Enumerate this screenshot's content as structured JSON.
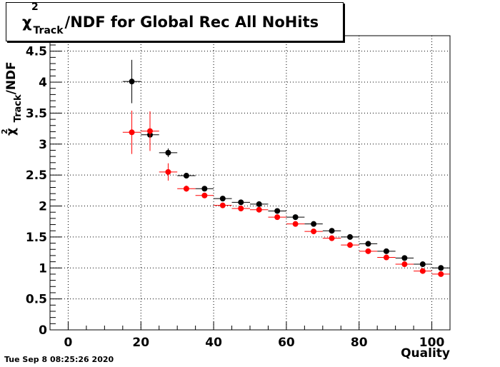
{
  "title": {
    "chi": "χ",
    "sup": "2",
    "sub": "Track",
    "rest": "/NDF for Global Rec All NoHits"
  },
  "date": "Tue Sep  8 08:25:26 2020",
  "chart_data": {
    "type": "scatter",
    "xlabel": "Quality",
    "ylabel": {
      "chi": "χ",
      "sup": "2",
      "sub": "Track",
      "rest": "/NDF"
    },
    "xlim": [
      -5,
      105
    ],
    "ylim": [
      0,
      4.75
    ],
    "xticks": [
      0,
      20,
      40,
      60,
      80,
      100
    ],
    "yticks": [
      0,
      0.5,
      1,
      1.5,
      2,
      2.5,
      3,
      3.5,
      4,
      4.5
    ],
    "grid": true,
    "series": [
      {
        "color": "#000000",
        "x": [
          17.5,
          22.5,
          27.5,
          32.5,
          37.5,
          42.5,
          47.5,
          52.5,
          57.5,
          62.5,
          67.5,
          72.5,
          77.5,
          82.5,
          87.5,
          92.5,
          97.5,
          102.5
        ],
        "y": [
          4.01,
          3.15,
          2.86,
          2.49,
          2.28,
          2.12,
          2.06,
          2.03,
          1.92,
          1.82,
          1.71,
          1.6,
          1.5,
          1.39,
          1.27,
          1.16,
          1.06,
          1.0
        ],
        "yerr": [
          0.35,
          0.05,
          0.07,
          0.04,
          0.03,
          0.03,
          0.02,
          0.02,
          0.02,
          0.02,
          0.02,
          0.02,
          0.02,
          0.02,
          0.02,
          0.02,
          0.02,
          0.02
        ]
      },
      {
        "color": "#ff0000",
        "x": [
          17.5,
          22.5,
          27.5,
          32.5,
          37.5,
          42.5,
          47.5,
          52.5,
          57.5,
          62.5,
          67.5,
          72.5,
          77.5,
          82.5,
          87.5,
          92.5,
          97.5,
          102.5
        ],
        "y": [
          3.19,
          3.21,
          2.55,
          2.28,
          2.17,
          2.01,
          1.96,
          1.94,
          1.82,
          1.71,
          1.59,
          1.48,
          1.37,
          1.27,
          1.17,
          1.06,
          0.95,
          0.9
        ],
        "yerr": [
          0.35,
          0.32,
          0.14,
          0.05,
          0.04,
          0.03,
          0.03,
          0.02,
          0.02,
          0.02,
          0.02,
          0.02,
          0.02,
          0.02,
          0.02,
          0.02,
          0.02,
          0.02
        ]
      }
    ],
    "bin_width": 5
  }
}
